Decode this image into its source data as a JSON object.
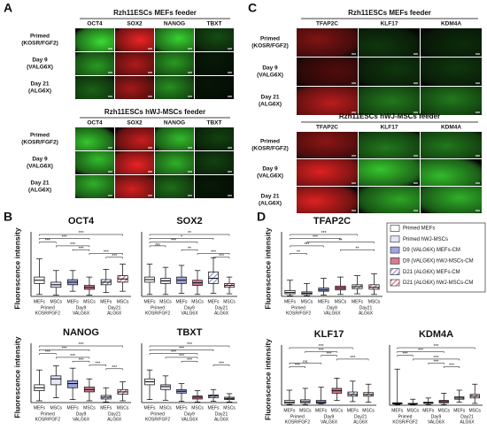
{
  "panel_labels": [
    "A",
    "B",
    "C",
    "D"
  ],
  "rows": [
    {
      "name": "Primed",
      "sub": "(KOSR/FGF2)"
    },
    {
      "name": "Day 9",
      "sub": "(VALG6X)"
    },
    {
      "name": "Day 21",
      "sub": "(ALG6X)"
    }
  ],
  "panel_a": {
    "groups": [
      {
        "title": "Rzh11ESCs MEFs feeder",
        "columns": [
          "OCT4",
          "SOX2",
          "NANOG",
          "TBXT"
        ]
      },
      {
        "title": "Rzh11ESCs hWJ-MSCs feeder",
        "columns": [
          "OCT4",
          "SOX2",
          "NANOG",
          "TBXT"
        ]
      }
    ]
  },
  "panel_c": {
    "groups": [
      {
        "title": "Rzh11ESCs MEFs feeder",
        "columns": [
          "TFAP2C",
          "KLF17",
          "KDM4A"
        ]
      },
      {
        "title": "Rzh11ESCs hWJ-MSCs feeder",
        "columns": [
          "TFAP2C",
          "KLF17",
          "KDM4A"
        ]
      }
    ]
  },
  "box_axis": {
    "categories": [
      "MEFs",
      "MSCs",
      "MEFs",
      "MSCs",
      "MEFs",
      "MSCs"
    ],
    "groups": [
      {
        "name": "Primed",
        "sub": "KOSR/FGF2"
      },
      {
        "name": "Day9",
        "sub": "VALG6X"
      },
      {
        "name": "Day21",
        "sub": "ALG6X"
      }
    ]
  },
  "legend": [
    {
      "name": "Primed MEFs",
      "color": "#ffffff",
      "hatch": false
    },
    {
      "name": "Primed hWJ-MSCs",
      "color": "#e4e7f6",
      "hatch": false
    },
    {
      "name": "D9 (VALG6X) MEFs-CM",
      "color": "#9ea6dc",
      "hatch": false
    },
    {
      "name": "D9 (VALG6X) hWJ-MSCs-CM",
      "color": "#d97b92",
      "hatch": false
    },
    {
      "name": "D21 (ALG6X) MEFs-CM",
      "color": "#7f8fd0",
      "hatch": true
    },
    {
      "name": "D21 (ALG6X) hWJ-MSCs-CM",
      "color": "#d8607c",
      "hatch": true
    }
  ],
  "chart_data": [
    {
      "type": "box",
      "title": "OCT4",
      "ylabel": "Fluorescence intensity",
      "ylim": [
        0,
        100
      ],
      "boxes": [
        {
          "min": 3,
          "q1": 20,
          "median": 25,
          "q3": 30,
          "max": 58
        },
        {
          "min": 2,
          "q1": 14,
          "median": 18,
          "q3": 22,
          "max": 40
        },
        {
          "min": 8,
          "q1": 18,
          "median": 22,
          "q3": 26,
          "max": 40
        },
        {
          "min": 2,
          "q1": 11,
          "median": 14,
          "q3": 17,
          "max": 30
        },
        {
          "min": 6,
          "q1": 18,
          "median": 22,
          "q3": 26,
          "max": 42
        },
        {
          "min": 8,
          "q1": 22,
          "median": 27,
          "q3": 32,
          "max": 50
        }
      ],
      "annotations": [
        {
          "text": "***",
          "pair": [
            0,
            5
          ]
        },
        {
          "text": "***",
          "pair": [
            0,
            3
          ]
        },
        {
          "text": "***",
          "pair": [
            0,
            1
          ]
        },
        {
          "text": "***",
          "pair": [
            1,
            3
          ]
        },
        {
          "text": "***",
          "pair": [
            2,
            3
          ]
        },
        {
          "text": "***",
          "pair": [
            3,
            5
          ]
        },
        {
          "text": "***",
          "pair": [
            4,
            5
          ]
        }
      ]
    },
    {
      "type": "box",
      "title": "SOX2",
      "ylim": [
        0,
        100
      ],
      "boxes": [
        {
          "min": 3,
          "q1": 22,
          "median": 26,
          "q3": 30,
          "max": 50
        },
        {
          "min": 3,
          "q1": 20,
          "median": 24,
          "q3": 28,
          "max": 45
        },
        {
          "min": 5,
          "q1": 20,
          "median": 25,
          "q3": 30,
          "max": 48
        },
        {
          "min": 3,
          "q1": 17,
          "median": 21,
          "q3": 25,
          "max": 40
        },
        {
          "min": 5,
          "q1": 20,
          "median": 28,
          "q3": 38,
          "max": 60
        },
        {
          "min": 4,
          "q1": 14,
          "median": 17,
          "q3": 20,
          "max": 30
        }
      ],
      "annotations": [
        {
          "text": "**",
          "pair": [
            0,
            5
          ]
        },
        {
          "text": "*",
          "pair": [
            0,
            4
          ]
        },
        {
          "text": "***",
          "pair": [
            0,
            3
          ]
        },
        {
          "text": "ns",
          "pair": [
            0,
            1
          ]
        },
        {
          "text": "**",
          "pair": [
            2,
            3
          ]
        },
        {
          "text": "***",
          "pair": [
            3,
            5
          ]
        },
        {
          "text": "***",
          "pair": [
            4,
            5
          ]
        }
      ]
    },
    {
      "type": "box",
      "title": "NANOG",
      "ylabel": "Fluorescence intensity",
      "ylim": [
        0,
        100
      ],
      "boxes": [
        {
          "min": 3,
          "q1": 20,
          "median": 25,
          "q3": 30,
          "max": 55
        },
        {
          "min": 8,
          "q1": 30,
          "median": 40,
          "q3": 45,
          "max": 62
        },
        {
          "min": 5,
          "q1": 25,
          "median": 32,
          "q3": 37,
          "max": 58
        },
        {
          "min": 3,
          "q1": 18,
          "median": 22,
          "q3": 26,
          "max": 40
        },
        {
          "min": 1,
          "q1": 6,
          "median": 9,
          "q3": 12,
          "max": 25
        },
        {
          "min": 3,
          "q1": 14,
          "median": 18,
          "q3": 22,
          "max": 35
        }
      ],
      "annotations": [
        {
          "text": "***",
          "pair": [
            0,
            5
          ]
        },
        {
          "text": "***",
          "pair": [
            0,
            3
          ]
        },
        {
          "text": "***",
          "pair": [
            0,
            1
          ]
        },
        {
          "text": "***",
          "pair": [
            1,
            3
          ]
        },
        {
          "text": "***",
          "pair": [
            2,
            3
          ]
        },
        {
          "text": "***",
          "pair": [
            3,
            4
          ]
        },
        {
          "text": "***",
          "pair": [
            4,
            5
          ]
        }
      ]
    },
    {
      "type": "box",
      "title": "TBXT",
      "ylim": [
        0,
        100
      ],
      "boxes": [
        {
          "min": 5,
          "q1": 30,
          "median": 35,
          "q3": 40,
          "max": 55
        },
        {
          "min": 4,
          "q1": 22,
          "median": 27,
          "q3": 30,
          "max": 45
        },
        {
          "min": 2,
          "q1": 16,
          "median": 19,
          "q3": 22,
          "max": 32
        },
        {
          "min": 1,
          "q1": 6,
          "median": 9,
          "q3": 11,
          "max": 20
        },
        {
          "min": 2,
          "q1": 8,
          "median": 11,
          "q3": 13,
          "max": 22
        },
        {
          "min": 1,
          "q1": 5,
          "median": 7,
          "q3": 9,
          "max": 15
        }
      ],
      "annotations": [
        {
          "text": "***",
          "pair": [
            0,
            5
          ]
        },
        {
          "text": "***",
          "pair": [
            0,
            4
          ]
        },
        {
          "text": "***",
          "pair": [
            0,
            3
          ]
        },
        {
          "text": "***",
          "pair": [
            1,
            3
          ]
        },
        {
          "text": "***",
          "pair": [
            2,
            3
          ]
        },
        {
          "text": "***",
          "pair": [
            4,
            5
          ]
        }
      ]
    },
    {
      "type": "box",
      "title": "TFAP2C",
      "ylabel": "Fluorescence intensity",
      "ylim": [
        0,
        100
      ],
      "boxes": [
        {
          "min": 1,
          "q1": 4,
          "median": 6,
          "q3": 9,
          "max": 25
        },
        {
          "min": 1,
          "q1": 3,
          "median": 5,
          "q3": 7,
          "max": 20
        },
        {
          "min": 2,
          "q1": 8,
          "median": 10,
          "q3": 13,
          "max": 28
        },
        {
          "min": 3,
          "q1": 10,
          "median": 13,
          "q3": 16,
          "max": 30
        },
        {
          "min": 4,
          "q1": 12,
          "median": 15,
          "q3": 18,
          "max": 32
        },
        {
          "min": 3,
          "q1": 11,
          "median": 14,
          "q3": 18,
          "max": 35
        }
      ],
      "annotations": [
        {
          "text": "***",
          "pair": [
            0,
            4
          ]
        },
        {
          "text": "***",
          "pair": [
            0,
            3
          ]
        },
        {
          "text": "**",
          "pair": [
            1,
            5
          ]
        },
        {
          "text": "***",
          "pair": [
            0,
            2
          ]
        },
        {
          "text": "**",
          "pair": [
            3,
            5
          ]
        },
        {
          "text": "**",
          "pair": [
            0,
            1
          ]
        }
      ]
    },
    {
      "type": "box",
      "title": "KLF17",
      "ylabel": "Fluorescence intensity",
      "ylim": [
        0,
        100
      ],
      "boxes": [
        {
          "min": 1,
          "q1": 3,
          "median": 5,
          "q3": 8,
          "max": 25
        },
        {
          "min": 1,
          "q1": 4,
          "median": 6,
          "q3": 9,
          "max": 28
        },
        {
          "min": 2,
          "q1": 3,
          "median": 5,
          "q3": 8,
          "max": 30
        },
        {
          "min": 8,
          "q1": 20,
          "median": 24,
          "q3": 28,
          "max": 45
        },
        {
          "min": 6,
          "q1": 15,
          "median": 18,
          "q3": 22,
          "max": 40
        },
        {
          "min": 5,
          "q1": 15,
          "median": 18,
          "q3": 21,
          "max": 35
        }
      ],
      "annotations": [
        {
          "text": "***",
          "pair": [
            0,
            4
          ]
        },
        {
          "text": "***",
          "pair": [
            1,
            3
          ]
        },
        {
          "text": "***",
          "pair": [
            2,
            3
          ]
        },
        {
          "text": "***",
          "pair": [
            3,
            5
          ]
        },
        {
          "text": "ns",
          "pair": [
            0,
            2
          ]
        },
        {
          "text": "***",
          "pair": [
            0,
            1
          ]
        }
      ]
    },
    {
      "type": "box",
      "title": "KDM4A",
      "ylim": [
        0,
        100
      ],
      "boxes": [
        {
          "min": 1,
          "q1": 2,
          "median": 3,
          "q3": 4,
          "max": 60
        },
        {
          "min": 1,
          "q1": 2,
          "median": 2,
          "q3": 3,
          "max": 10
        },
        {
          "min": 1,
          "q1": 3,
          "median": 4,
          "q3": 5,
          "max": 12
        },
        {
          "min": 1,
          "q1": 4,
          "median": 6,
          "q3": 8,
          "max": 20
        },
        {
          "min": 5,
          "q1": 10,
          "median": 12,
          "q3": 14,
          "max": 25
        },
        {
          "min": 3,
          "q1": 12,
          "median": 15,
          "q3": 18,
          "max": 35
        }
      ],
      "annotations": [
        {
          "text": "***",
          "pair": [
            0,
            5
          ]
        },
        {
          "text": "***",
          "pair": [
            0,
            3
          ]
        },
        {
          "text": "***",
          "pair": [
            0,
            1
          ]
        },
        {
          "text": "***",
          "pair": [
            1,
            4
          ]
        },
        {
          "text": "***",
          "pair": [
            2,
            3
          ]
        },
        {
          "text": "***",
          "pair": [
            3,
            4
          ]
        }
      ]
    }
  ]
}
